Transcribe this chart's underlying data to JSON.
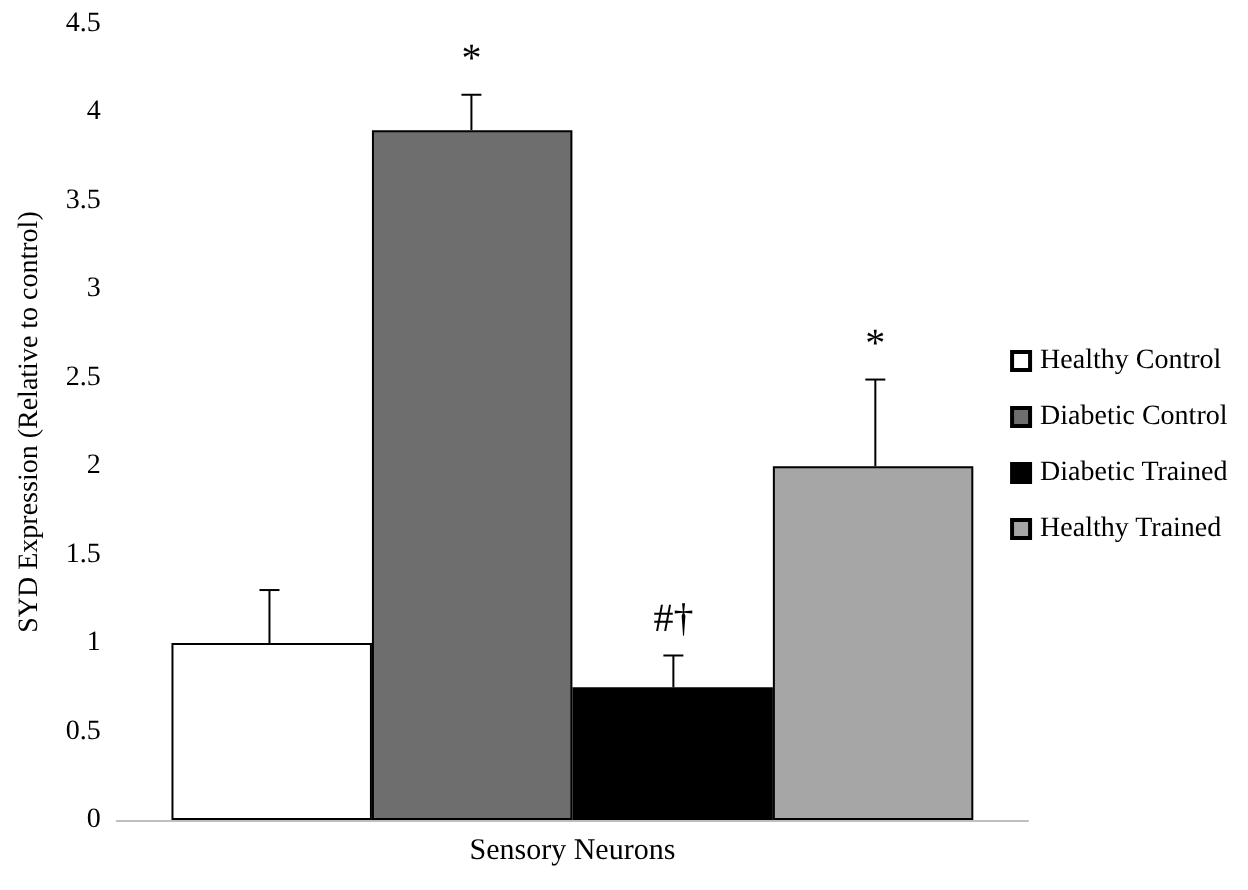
{
  "chart_data": {
    "type": "bar",
    "ylabel": "SYD Expression (Relative to control)",
    "categories": [
      "Sensory Neurons"
    ],
    "series": [
      {
        "name": "Healthy Control",
        "color": "#ffffff",
        "values": [
          1
        ],
        "errors": [
          [
            1,
            1.3
          ]
        ]
      },
      {
        "name": "Diabetic Control",
        "color": "#6e6e6e",
        "values": [
          3.9
        ],
        "errors": [
          [
            3.9,
            4.1
          ]
        ],
        "value_labels": [
          "*"
        ]
      },
      {
        "name": "Diabetic Trained",
        "color": "#000000",
        "values": [
          0.75
        ],
        "errors": [
          [
            0.75,
            0.93
          ]
        ],
        "value_labels": [
          "#†"
        ]
      },
      {
        "name": "Healthy Trained",
        "color": "#a6a6a6",
        "values": [
          2
        ],
        "errors": [
          [
            2,
            2.49
          ]
        ],
        "value_labels": [
          "*"
        ]
      }
    ],
    "ylim": [
      0,
      4.5
    ],
    "yticks": [
      0,
      0.5,
      1,
      1.5,
      2,
      2.5,
      3,
      3.5,
      4,
      4.5
    ],
    "grid": false,
    "legend": "right"
  }
}
